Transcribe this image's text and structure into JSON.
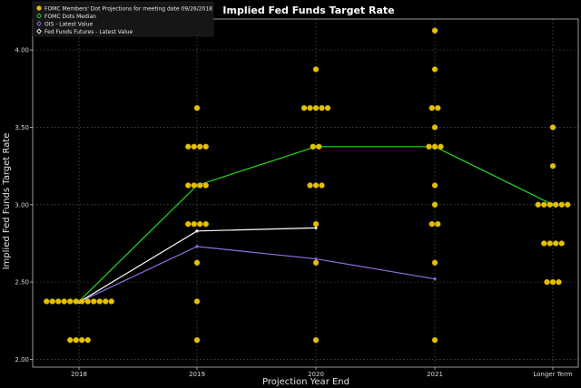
{
  "chart_data": {
    "type": "scatter",
    "title": "Implied Fed Funds Target Rate",
    "xlabel": "Projection Year End",
    "ylabel": "Implied Fed Funds Target Rate",
    "categories": [
      "2018",
      "2019",
      "2020",
      "2021",
      "Longer Term"
    ],
    "ylim": [
      1.95,
      4.2
    ],
    "yticks": [
      "2.00",
      "2.50",
      "3.00",
      "3.50",
      "4.00"
    ],
    "grid": true,
    "legend": {
      "placement": "top-left",
      "entries": [
        {
          "label": "FOMC Members' Dot Projections for meeting date 09/26/2018",
          "color": "#e6c000",
          "marker": "filled"
        },
        {
          "label": "FOMC Dots Median",
          "color": "#22dd22",
          "marker": "ring"
        },
        {
          "label": "OIS - Latest Value",
          "color": "#8f6ee0",
          "marker": "diamond"
        },
        {
          "label": "Fed Funds Futures - Latest Value",
          "color": "#ffffff",
          "marker": "diamond"
        }
      ]
    },
    "dots": [
      {
        "category": "2018",
        "y": 2.375,
        "count": 12
      },
      {
        "category": "2018",
        "y": 2.125,
        "count": 4
      },
      {
        "category": "2019",
        "y": 3.625,
        "count": 1
      },
      {
        "category": "2019",
        "y": 3.375,
        "count": 4
      },
      {
        "category": "2019",
        "y": 3.125,
        "count": 4
      },
      {
        "category": "2019",
        "y": 2.875,
        "count": 4
      },
      {
        "category": "2019",
        "y": 2.625,
        "count": 1
      },
      {
        "category": "2019",
        "y": 2.375,
        "count": 1
      },
      {
        "category": "2019",
        "y": 2.125,
        "count": 1
      },
      {
        "category": "2020",
        "y": 3.875,
        "count": 1
      },
      {
        "category": "2020",
        "y": 3.625,
        "count": 5
      },
      {
        "category": "2020",
        "y": 3.375,
        "count": 2
      },
      {
        "category": "2020",
        "y": 3.125,
        "count": 3
      },
      {
        "category": "2020",
        "y": 2.875,
        "count": 1
      },
      {
        "category": "2020",
        "y": 2.625,
        "count": 1
      },
      {
        "category": "2020",
        "y": 2.125,
        "count": 1
      },
      {
        "category": "2021",
        "y": 4.125,
        "count": 1
      },
      {
        "category": "2021",
        "y": 3.875,
        "count": 1
      },
      {
        "category": "2021",
        "y": 3.625,
        "count": 2
      },
      {
        "category": "2021",
        "y": 3.5,
        "count": 1
      },
      {
        "category": "2021",
        "y": 3.375,
        "count": 3
      },
      {
        "category": "2021",
        "y": 3.125,
        "count": 1
      },
      {
        "category": "2021",
        "y": 3.0,
        "count": 1
      },
      {
        "category": "2021",
        "y": 2.875,
        "count": 2
      },
      {
        "category": "2021",
        "y": 2.625,
        "count": 1
      },
      {
        "category": "2021",
        "y": 2.125,
        "count": 1
      },
      {
        "category": "Longer Term",
        "y": 3.5,
        "count": 1
      },
      {
        "category": "Longer Term",
        "y": 3.25,
        "count": 1
      },
      {
        "category": "Longer Term",
        "y": 3.0,
        "count": 6
      },
      {
        "category": "Longer Term",
        "y": 2.75,
        "count": 4
      },
      {
        "category": "Longer Term",
        "y": 2.5,
        "count": 3
      }
    ],
    "series": [
      {
        "name": "FOMC Dots Median",
        "color": "#22dd22",
        "values": [
          2.375,
          3.125,
          3.375,
          3.375,
          3.0
        ]
      },
      {
        "name": "OIS - Latest Value",
        "color": "#8f6ee0",
        "values": [
          2.37,
          2.73,
          2.65,
          2.52,
          null
        ]
      },
      {
        "name": "Fed Funds Futures - Latest Value",
        "color": "#ffffff",
        "values": [
          2.37,
          2.83,
          2.85,
          null,
          null
        ]
      }
    ]
  }
}
